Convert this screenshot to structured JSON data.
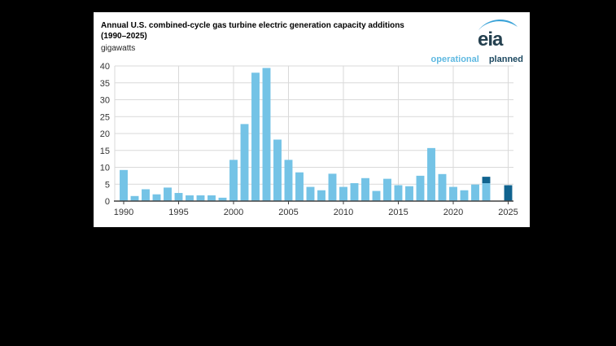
{
  "page": {
    "background": "#000000"
  },
  "header": {
    "title_line1": "Annual U.S. combined-cycle gas turbine electric generation capacity additions",
    "title_line2": "(1990–2025)",
    "unit_label": "gigawatts",
    "logo_text": "eia"
  },
  "legend": {
    "operational_label": "operational",
    "planned_label": "planned"
  },
  "colors": {
    "operational_bar": "#74c3e6",
    "planned_bar": "#10638f",
    "operational_text": "#5fb9e1",
    "planned_text": "#1d4961",
    "grid": "#d9d9d9",
    "axis": "#404040",
    "tick_text": "#333333",
    "logo_navy": "#24404f",
    "logo_swoosh": "#3ba3d8"
  },
  "chart_data": {
    "type": "bar",
    "stacked": true,
    "title": "Annual U.S. combined-cycle gas turbine electric generation capacity additions (1990–2025)",
    "ylabel": "gigawatts",
    "xlabel": "",
    "ylim": [
      0,
      40
    ],
    "ytick_step": 5,
    "ytick_labels": [
      "0",
      "5",
      "10",
      "15",
      "20",
      "25",
      "30",
      "35",
      "40"
    ],
    "xtick_labels": [
      "1990",
      "1995",
      "2000",
      "2005",
      "2010",
      "2015",
      "2020",
      "2025"
    ],
    "grid": true,
    "legend_position": "top-right",
    "categories": [
      1990,
      1991,
      1992,
      1993,
      1994,
      1995,
      1996,
      1997,
      1998,
      1999,
      2000,
      2001,
      2002,
      2003,
      2004,
      2005,
      2006,
      2007,
      2008,
      2009,
      2010,
      2011,
      2012,
      2013,
      2014,
      2015,
      2016,
      2017,
      2018,
      2019,
      2020,
      2021,
      2022,
      2023,
      2024,
      2025
    ],
    "series": [
      {
        "name": "operational",
        "color": "#74c3e6",
        "values": [
          9.2,
          1.5,
          3.5,
          2.0,
          4.0,
          2.4,
          1.7,
          1.7,
          1.7,
          1.0,
          12.2,
          22.8,
          38.0,
          39.4,
          18.2,
          12.2,
          8.5,
          4.2,
          3.2,
          8.1,
          4.2,
          5.3,
          6.8,
          3.0,
          6.6,
          4.7,
          4.4,
          7.5,
          15.7,
          8.0,
          4.2,
          3.2,
          4.9,
          5.3,
          0.1,
          0
        ]
      },
      {
        "name": "planned",
        "color": "#10638f",
        "values": [
          0,
          0,
          0,
          0,
          0,
          0,
          0,
          0,
          0,
          0,
          0,
          0,
          0,
          0,
          0,
          0,
          0,
          0,
          0,
          0,
          0,
          0,
          0,
          0,
          0,
          0,
          0,
          0,
          0,
          0,
          0,
          0,
          0,
          1.9,
          0,
          4.7
        ]
      }
    ]
  }
}
